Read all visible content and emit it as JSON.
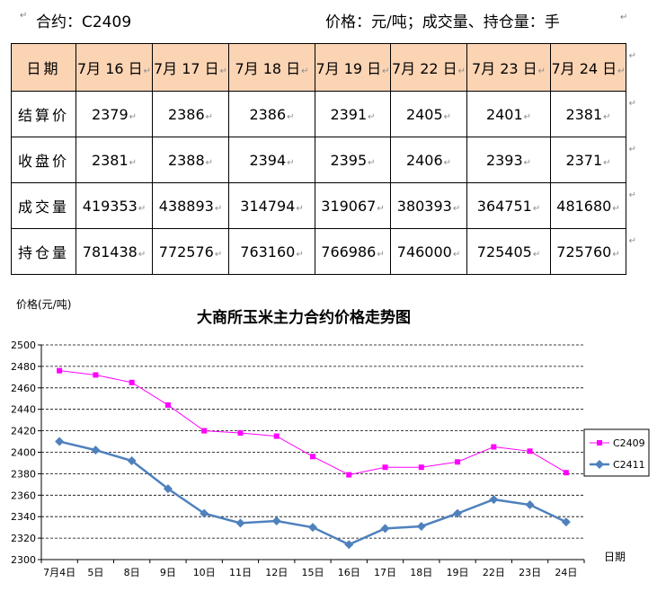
{
  "header": {
    "contract": "合约：C2409",
    "units": "价格：元/吨；成交量、持仓量：手"
  },
  "table": {
    "corner": "日期",
    "dates": [
      "7月 16 日",
      "7月 17 日",
      "7月 18 日",
      "7月 19 日",
      "7月 22 日",
      "7月 23 日",
      "7月 24 日"
    ],
    "rows": [
      {
        "label": "结算价",
        "values": [
          "2379",
          "2386",
          "2386",
          "2391",
          "2405",
          "2401",
          "2381"
        ]
      },
      {
        "label": "收盘价",
        "values": [
          "2381",
          "2388",
          "2394",
          "2395",
          "2406",
          "2393",
          "2371"
        ]
      },
      {
        "label": "成交量",
        "values": [
          "419353",
          "438893",
          "314794",
          "319067",
          "380393",
          "364751",
          "481680"
        ]
      },
      {
        "label": "持仓量",
        "values": [
          "781438",
          "772576",
          "763160",
          "766986",
          "746000",
          "725405",
          "725760"
        ]
      }
    ]
  },
  "chart_data": {
    "type": "line",
    "title": "大商所玉米主力合约价格走势图",
    "ylabel": "价格(元/吨)",
    "xlabel": "日期",
    "ylim": [
      2300,
      2500
    ],
    "yticks": [
      2300,
      2320,
      2340,
      2360,
      2380,
      2400,
      2420,
      2440,
      2460,
      2480,
      2500
    ],
    "grid": true,
    "legend": "right",
    "categories": [
      "7月4日",
      "5日",
      "8日",
      "9日",
      "10日",
      "11日",
      "12日",
      "15日",
      "16日",
      "17日",
      "18日",
      "19日",
      "22日",
      "23日",
      "24日"
    ],
    "series": [
      {
        "name": "C2409",
        "color": "#ff00ff",
        "marker": "square",
        "values": [
          2476,
          2472,
          2465,
          2444,
          2420,
          2418,
          2415,
          2396,
          2379,
          2386,
          2386,
          2391,
          2405,
          2401,
          2381
        ]
      },
      {
        "name": "C2411",
        "color": "#4f81bd",
        "marker": "diamond",
        "values": [
          2410,
          2402,
          2392,
          2366,
          2343,
          2334,
          2336,
          2330,
          2314,
          2329,
          2331,
          2343,
          2356,
          2351,
          2335
        ]
      }
    ]
  }
}
